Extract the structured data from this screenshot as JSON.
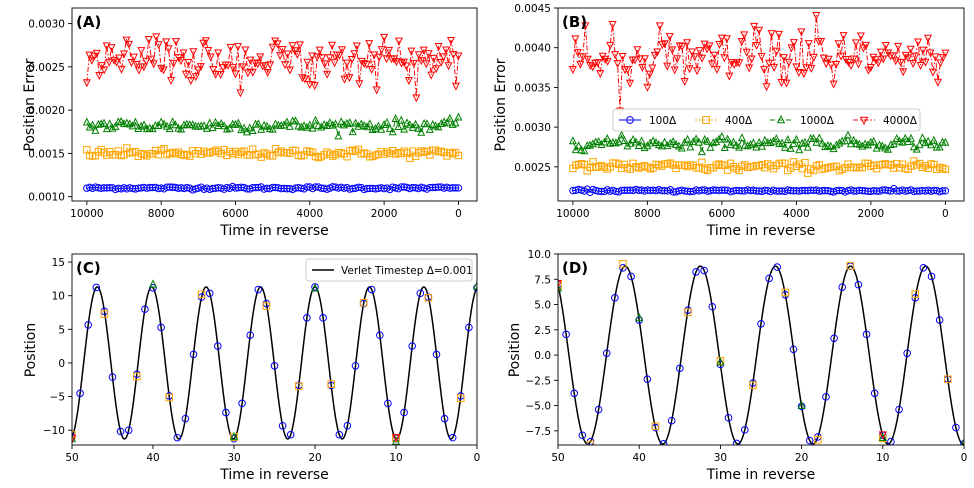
{
  "chart_data": [
    {
      "panel": "(A)",
      "type": "line",
      "xlabel": "Time in reverse",
      "ylabel": "Position Error",
      "xlim": [
        10400,
        -500
      ],
      "ylim": [
        0.00095,
        0.00318
      ],
      "xticks": [
        10000,
        8000,
        6000,
        4000,
        2000,
        0
      ],
      "yticks": [
        0.001,
        0.0015,
        0.002,
        0.0025,
        0.003
      ],
      "ytick_labels": [
        "0.0010",
        "0.0015",
        "0.0020",
        "0.0025",
        "0.0030"
      ],
      "x_range": [
        10000,
        0
      ],
      "series": [
        {
          "name": "100Δ",
          "color": "#0000ff",
          "marker": "circle",
          "mean": 0.0011,
          "noise": 8e-06
        },
        {
          "name": "400Δ",
          "color": "#ffa500",
          "marker": "square",
          "mean": 0.0015,
          "noise": 2.5e-05
        },
        {
          "name": "1000Δ",
          "color": "#008000",
          "marker": "triangle-up",
          "mean": 0.00182,
          "noise": 3.5e-05
        },
        {
          "name": "4000Δ",
          "color": "#ff0000",
          "marker": "triangle-down",
          "mean": 0.00258,
          "noise": 0.00013
        }
      ]
    },
    {
      "panel": "(B)",
      "type": "line",
      "xlabel": "Time in reverse",
      "ylabel": "Position Error",
      "xlim": [
        10400,
        -500
      ],
      "ylim": [
        0.00207,
        0.0045
      ],
      "xticks": [
        10000,
        8000,
        6000,
        4000,
        2000,
        0
      ],
      "yticks": [
        0.0025,
        0.003,
        0.0035,
        0.004,
        0.0045
      ],
      "ytick_labels": [
        "0.0025",
        "0.0030",
        "0.0035",
        "0.0040",
        "0.0045"
      ],
      "x_range": [
        10000,
        0
      ],
      "legend": "center",
      "series": [
        {
          "name": "100Δ",
          "color": "#0000ff",
          "marker": "circle",
          "mean": 0.0022,
          "noise": 8e-06
        },
        {
          "name": "400Δ",
          "color": "#ffa500",
          "marker": "square",
          "mean": 0.0025,
          "noise": 3e-05
        },
        {
          "name": "1000Δ",
          "color": "#008000",
          "marker": "triangle-up",
          "mean": 0.0028,
          "noise": 4e-05
        },
        {
          "name": "4000Δ",
          "color": "#ff0000",
          "marker": "triangle-down",
          "mean": 0.00385,
          "noise": 0.00016
        }
      ]
    },
    {
      "panel": "(C)",
      "type": "line",
      "xlabel": "Time in reverse",
      "ylabel": "Position",
      "xlim": [
        50,
        0
      ],
      "ylim": [
        -12.2,
        16.2
      ],
      "xticks": [
        50,
        40,
        30,
        20,
        10,
        0
      ],
      "yticks": [
        -10,
        -5,
        0,
        5,
        10,
        15
      ],
      "ytick_labels": [
        "−10",
        "−5",
        "0",
        "5",
        "10",
        "15"
      ],
      "legend": "top-right",
      "reference": {
        "name": "Verlet Timestep Δ=0.001",
        "amplitude": 11.3,
        "period": 6.72,
        "phase": 1.72
      },
      "series": [
        {
          "name": "100Δ",
          "color": "#0000ff",
          "marker": "circle",
          "spacing": 1.0
        },
        {
          "name": "400Δ",
          "color": "#ffa500",
          "marker": "square",
          "spacing": 4.0
        },
        {
          "name": "1000Δ",
          "color": "#008000",
          "marker": "triangle-up",
          "spacing": 10.0
        },
        {
          "name": "4000Δ",
          "color": "#ff0000",
          "marker": "triangle-down",
          "spacing": 40.0
        }
      ]
    },
    {
      "panel": "(D)",
      "type": "line",
      "xlabel": "Time in reverse",
      "ylabel": "Position",
      "xlim": [
        50,
        0
      ],
      "ylim": [
        -8.9,
        10.0
      ],
      "xticks": [
        50,
        40,
        30,
        20,
        10,
        0
      ],
      "yticks": [
        -7.5,
        -5.0,
        -2.5,
        0.0,
        2.5,
        5.0,
        7.5,
        10.0
      ],
      "ytick_labels": [
        "−7.5",
        "−5.0",
        "−2.5",
        "0.0",
        "2.5",
        "5.0",
        "7.5",
        "10.0"
      ],
      "reference": {
        "name": "Verlet Timestep Δ=0.001",
        "amplitude": 8.8,
        "period": 9.25,
        "phase": 4.65
      },
      "series": [
        {
          "name": "100Δ",
          "color": "#0000ff",
          "marker": "circle",
          "spacing": 1.0
        },
        {
          "name": "400Δ",
          "color": "#ffa500",
          "marker": "square",
          "spacing": 4.0
        },
        {
          "name": "1000Δ",
          "color": "#008000",
          "marker": "triangle-up",
          "spacing": 10.0
        },
        {
          "name": "4000Δ",
          "color": "#ff0000",
          "marker": "triangle-down",
          "spacing": 40.0
        }
      ]
    }
  ]
}
